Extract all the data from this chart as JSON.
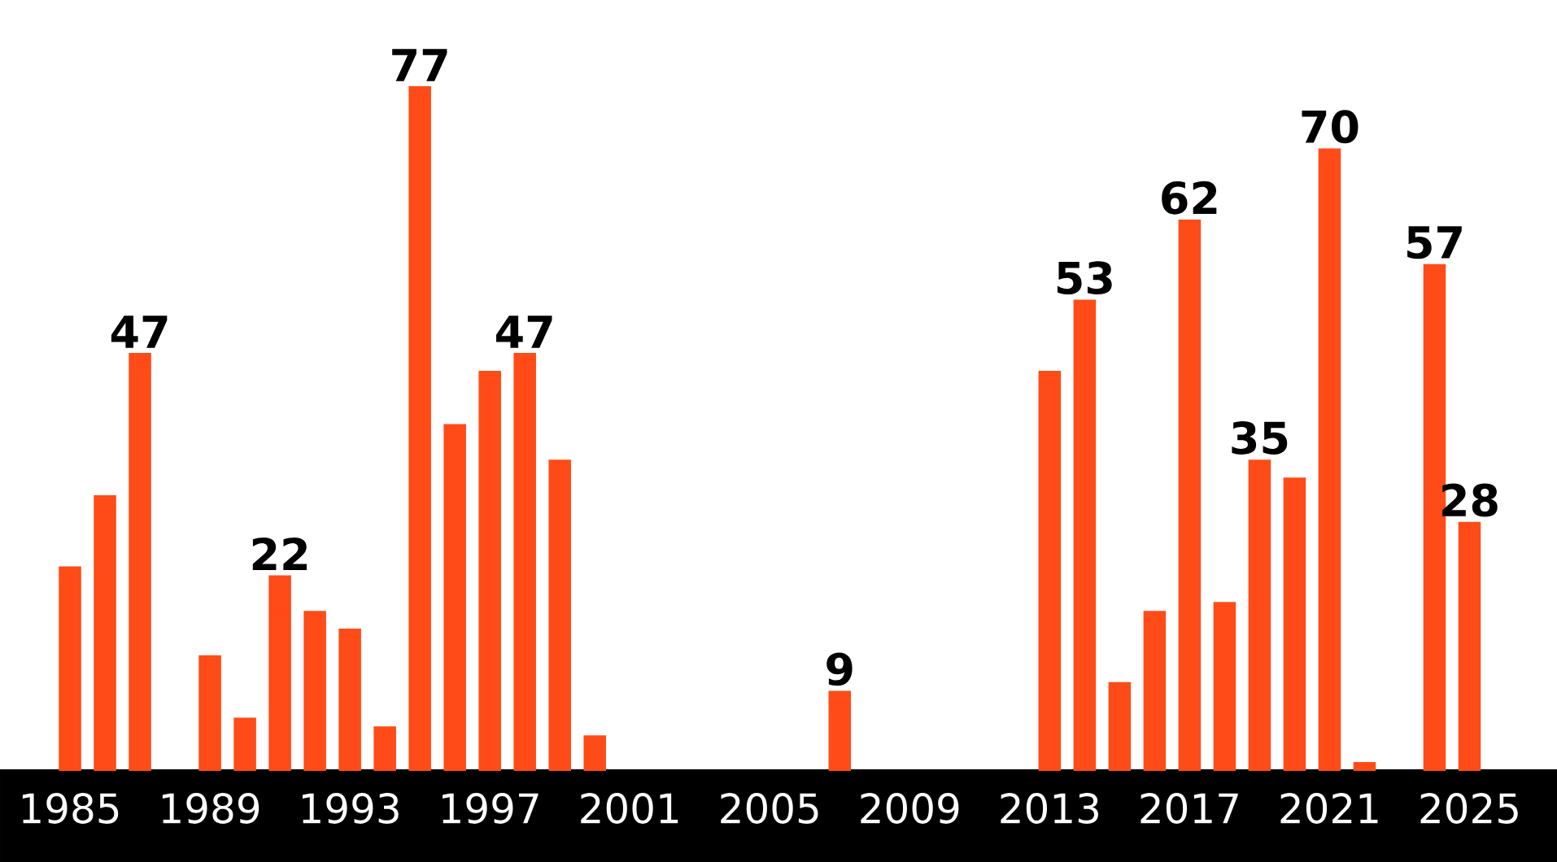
{
  "chart_data": {
    "type": "bar",
    "x": [
      1985,
      1986,
      1987,
      1988,
      1989,
      1990,
      1991,
      1992,
      1993,
      1994,
      1995,
      1996,
      1997,
      1998,
      1999,
      2000,
      2001,
      2002,
      2003,
      2004,
      2005,
      2006,
      2007,
      2008,
      2009,
      2010,
      2011,
      2012,
      2013,
      2014,
      2015,
      2016,
      2017,
      2018,
      2019,
      2020,
      2021,
      2022,
      2023,
      2024,
      2025
    ],
    "values": [
      23,
      31,
      47,
      0,
      13,
      6,
      22,
      18,
      16,
      5,
      77,
      39,
      45,
      47,
      35,
      4,
      0,
      0,
      0,
      0,
      0,
      0,
      9,
      0,
      0,
      0,
      0,
      0,
      45,
      53,
      10,
      18,
      62,
      19,
      35,
      33,
      70,
      1,
      0,
      57,
      28
    ],
    "value_labels": [
      null,
      null,
      "47",
      null,
      null,
      null,
      "22",
      null,
      null,
      null,
      "77",
      null,
      null,
      "47",
      null,
      null,
      null,
      null,
      null,
      null,
      null,
      null,
      "9",
      null,
      null,
      null,
      null,
      null,
      null,
      "53",
      null,
      null,
      "62",
      null,
      "35",
      null,
      "70",
      null,
      null,
      "57",
      "28"
    ],
    "color": "#ff4b17",
    "xlim": [
      1983,
      2027.5
    ],
    "xticks": [
      1985,
      1989,
      1993,
      1997,
      2001,
      2005,
      2009,
      2013,
      2017,
      2021,
      2025
    ],
    "grid": false
  }
}
